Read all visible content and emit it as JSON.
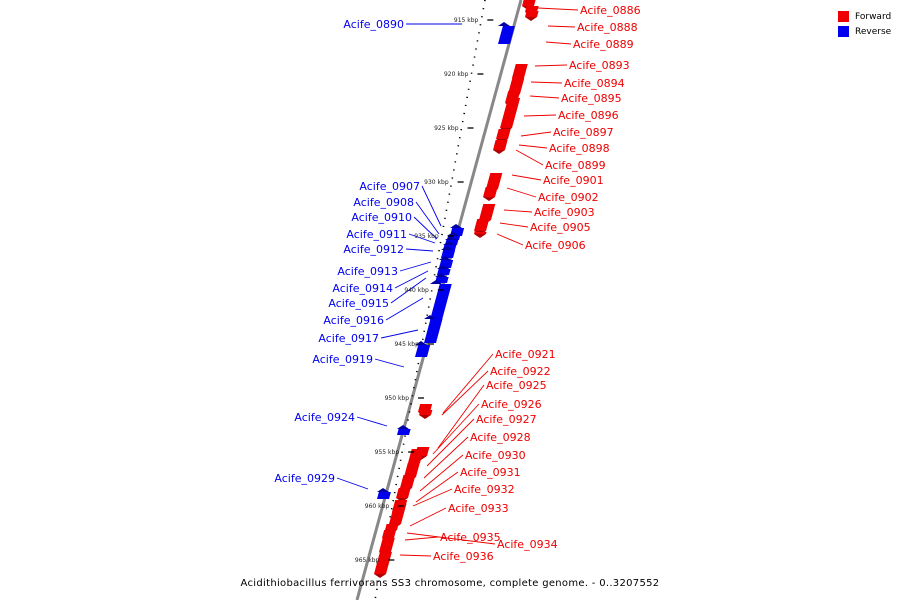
{
  "legend": {
    "forward_label": "Forward",
    "reverse_label": "Reverse",
    "forward_color": "#ee0000",
    "reverse_color": "#0000ee"
  },
  "caption": "Acidithiobacillus ferrivorans SS3 chromosome, complete genome. - 0..3207552",
  "axis": {
    "unit": "kbp",
    "ticks": [
      {
        "kbp": 915,
        "label": "915 kbp"
      },
      {
        "kbp": 920,
        "label": "920 kbp"
      },
      {
        "kbp": 925,
        "label": "925 kbp"
      },
      {
        "kbp": 930,
        "label": "930 kbp"
      },
      {
        "kbp": 935,
        "label": "935 kbp"
      },
      {
        "kbp": 940,
        "label": "940 kbp"
      },
      {
        "kbp": 945,
        "label": "945 kbp"
      },
      {
        "kbp": 950,
        "label": "950 kbp"
      },
      {
        "kbp": 955,
        "label": "955 kbp"
      },
      {
        "kbp": 960,
        "label": "960 kbp"
      },
      {
        "kbp": 965,
        "label": "965 kbp"
      }
    ]
  },
  "genes": [
    {
      "label": "Acife_0886",
      "strand": "forward"
    },
    {
      "label": "Acife_0888",
      "strand": "forward"
    },
    {
      "label": "Acife_0889",
      "strand": "forward"
    },
    {
      "label": "Acife_0890",
      "strand": "reverse"
    },
    {
      "label": "Acife_0893",
      "strand": "forward"
    },
    {
      "label": "Acife_0894",
      "strand": "forward"
    },
    {
      "label": "Acife_0895",
      "strand": "forward"
    },
    {
      "label": "Acife_0896",
      "strand": "forward"
    },
    {
      "label": "Acife_0897",
      "strand": "forward"
    },
    {
      "label": "Acife_0898",
      "strand": "forward"
    },
    {
      "label": "Acife_0899",
      "strand": "forward"
    },
    {
      "label": "Acife_0901",
      "strand": "forward"
    },
    {
      "label": "Acife_0902",
      "strand": "forward"
    },
    {
      "label": "Acife_0903",
      "strand": "forward"
    },
    {
      "label": "Acife_0905",
      "strand": "forward"
    },
    {
      "label": "Acife_0906",
      "strand": "forward"
    },
    {
      "label": "Acife_0907",
      "strand": "reverse"
    },
    {
      "label": "Acife_0908",
      "strand": "reverse"
    },
    {
      "label": "Acife_0910",
      "strand": "reverse"
    },
    {
      "label": "Acife_0911",
      "strand": "reverse"
    },
    {
      "label": "Acife_0912",
      "strand": "reverse"
    },
    {
      "label": "Acife_0913",
      "strand": "reverse"
    },
    {
      "label": "Acife_0914",
      "strand": "reverse"
    },
    {
      "label": "Acife_0915",
      "strand": "reverse"
    },
    {
      "label": "Acife_0916",
      "strand": "reverse"
    },
    {
      "label": "Acife_0917",
      "strand": "reverse"
    },
    {
      "label": "Acife_0919",
      "strand": "reverse"
    },
    {
      "label": "Acife_0921",
      "strand": "forward"
    },
    {
      "label": "Acife_0922",
      "strand": "forward"
    },
    {
      "label": "Acife_0924",
      "strand": "reverse"
    },
    {
      "label": "Acife_0925",
      "strand": "forward"
    },
    {
      "label": "Acife_0926",
      "strand": "forward"
    },
    {
      "label": "Acife_0927",
      "strand": "forward"
    },
    {
      "label": "Acife_0928",
      "strand": "forward"
    },
    {
      "label": "Acife_0929",
      "strand": "reverse"
    },
    {
      "label": "Acife_0930",
      "strand": "forward"
    },
    {
      "label": "Acife_0931",
      "strand": "forward"
    },
    {
      "label": "Acife_0932",
      "strand": "forward"
    },
    {
      "label": "Acife_0933",
      "strand": "forward"
    },
    {
      "label": "Acife_0934",
      "strand": "forward"
    },
    {
      "label": "Acife_0935",
      "strand": "forward"
    },
    {
      "label": "Acife_0936",
      "strand": "forward"
    }
  ]
}
